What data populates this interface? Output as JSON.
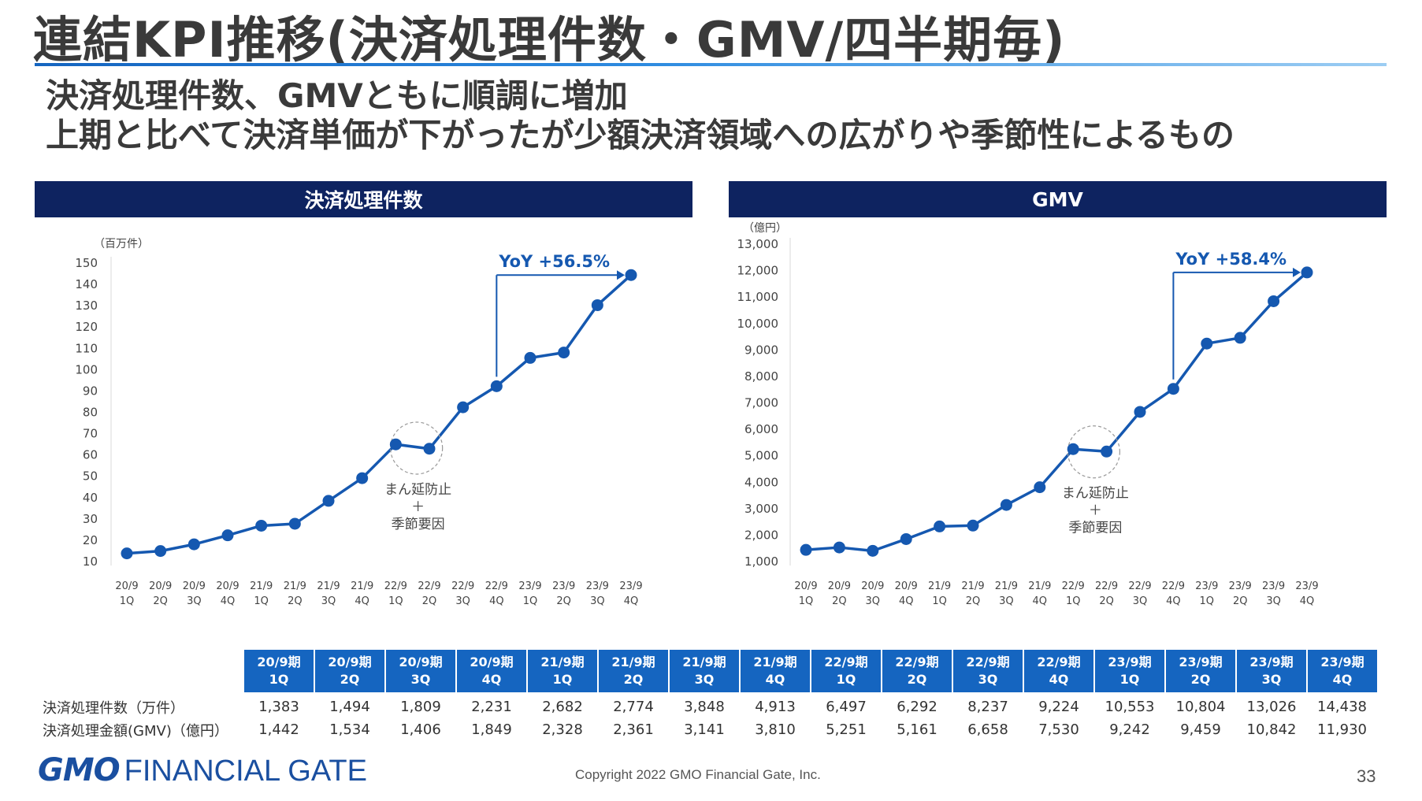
{
  "title": "連結KPI推移(決済処理件数・GMV/四半期毎)",
  "subtitle1": "決済処理件数、GMVともに順調に増加",
  "subtitle2": "上期と比べて決済単価が下がったが少額決済領域への広がりや季節性によるもの",
  "colors": {
    "header_bg": "#0e2360",
    "line": "#1558b0",
    "table_header": "#1565c0"
  },
  "chart_data": [
    {
      "type": "line",
      "title": "決済処理件数",
      "ylabel": "（百万件）",
      "ylim": [
        10,
        150
      ],
      "yticks": [
        "150",
        "140",
        "130",
        "120",
        "110",
        "100",
        "90",
        "80",
        "70",
        "60",
        "50",
        "40",
        "30",
        "20",
        "10"
      ],
      "categories": [
        "20/9 1Q",
        "20/9 2Q",
        "20/9 3Q",
        "20/9 4Q",
        "21/9 1Q",
        "21/9 2Q",
        "21/9 3Q",
        "21/9 4Q",
        "22/9 1Q",
        "22/9 2Q",
        "22/9 3Q",
        "22/9 4Q",
        "23/9 1Q",
        "23/9 2Q",
        "23/9 3Q",
        "23/9 4Q"
      ],
      "x_top": [
        "20/9",
        "20/9",
        "20/9",
        "20/9",
        "21/9",
        "21/9",
        "21/9",
        "21/9",
        "22/9",
        "22/9",
        "22/9",
        "22/9",
        "23/9",
        "23/9",
        "23/9",
        "23/9"
      ],
      "x_bottom": [
        "1Q",
        "2Q",
        "3Q",
        "4Q",
        "1Q",
        "2Q",
        "3Q",
        "4Q",
        "1Q",
        "2Q",
        "3Q",
        "4Q",
        "1Q",
        "2Q",
        "3Q",
        "4Q"
      ],
      "values": [
        13.83,
        14.94,
        18.09,
        22.31,
        26.82,
        27.74,
        38.48,
        49.13,
        64.97,
        62.92,
        82.37,
        92.24,
        105.53,
        108.04,
        130.26,
        144.38
      ],
      "annotation_yoy": "YoY +56.5%",
      "note_lines": [
        "まん延防止",
        "＋",
        "季節要因"
      ],
      "grid": false
    },
    {
      "type": "line",
      "title": "GMV",
      "ylabel": "（億円）",
      "ylim": [
        1000,
        13000
      ],
      "yticks": [
        "13,000",
        "12,000",
        "11,000",
        "10,000",
        "9,000",
        "8,000",
        "7,000",
        "6,000",
        "5,000",
        "4,000",
        "3,000",
        "2,000",
        "1,000"
      ],
      "categories": [
        "20/9 1Q",
        "20/9 2Q",
        "20/9 3Q",
        "20/9 4Q",
        "21/9 1Q",
        "21/9 2Q",
        "21/9 3Q",
        "21/9 4Q",
        "22/9 1Q",
        "22/9 2Q",
        "22/9 3Q",
        "22/9 4Q",
        "23/9 1Q",
        "23/9 2Q",
        "23/9 3Q",
        "23/9 4Q"
      ],
      "x_top": [
        "20/9",
        "20/9",
        "20/9",
        "20/9",
        "21/9",
        "21/9",
        "21/9",
        "21/9",
        "22/9",
        "22/9",
        "22/9",
        "22/9",
        "23/9",
        "23/9",
        "23/9",
        "23/9"
      ],
      "x_bottom": [
        "1Q",
        "2Q",
        "3Q",
        "4Q",
        "1Q",
        "2Q",
        "3Q",
        "4Q",
        "1Q",
        "2Q",
        "3Q",
        "4Q",
        "1Q",
        "2Q",
        "3Q",
        "4Q"
      ],
      "values": [
        1442,
        1534,
        1406,
        1849,
        2328,
        2361,
        3141,
        3810,
        5251,
        5161,
        6658,
        7530,
        9242,
        9459,
        10842,
        11930
      ],
      "annotation_yoy": "YoY +58.4%",
      "note_lines": [
        "まん延防止",
        "＋",
        "季節要因"
      ],
      "grid": false
    }
  ],
  "table": {
    "headers": [
      [
        "20/9期",
        "1Q"
      ],
      [
        "20/9期",
        "2Q"
      ],
      [
        "20/9期",
        "3Q"
      ],
      [
        "20/9期",
        "4Q"
      ],
      [
        "21/9期",
        "1Q"
      ],
      [
        "21/9期",
        "2Q"
      ],
      [
        "21/9期",
        "3Q"
      ],
      [
        "21/9期",
        "4Q"
      ],
      [
        "22/9期",
        "1Q"
      ],
      [
        "22/9期",
        "2Q"
      ],
      [
        "22/9期",
        "3Q"
      ],
      [
        "22/9期",
        "4Q"
      ],
      [
        "23/9期",
        "1Q"
      ],
      [
        "23/9期",
        "2Q"
      ],
      [
        "23/9期",
        "3Q"
      ],
      [
        "23/9期",
        "4Q"
      ]
    ],
    "rows": [
      {
        "label": "決済処理件数（万件）",
        "values": [
          "1,383",
          "1,494",
          "1,809",
          "2,231",
          "2,682",
          "2,774",
          "3,848",
          "4,913",
          "6,497",
          "6,292",
          "8,237",
          "9,224",
          "10,553",
          "10,804",
          "13,026",
          "14,438"
        ]
      },
      {
        "label": "決済処理金額(GMV)（億円）",
        "values": [
          "1,442",
          "1,534",
          "1,406",
          "1,849",
          "2,328",
          "2,361",
          "3,141",
          "3,810",
          "5,251",
          "5,161",
          "6,658",
          "7,530",
          "9,242",
          "9,459",
          "10,842",
          "11,930"
        ]
      }
    ]
  },
  "footer": {
    "logo_gmo": "GMO",
    "logo_text": "FINANCIAL GATE",
    "copyright": "Copyright 2022 GMO Financial Gate, Inc.",
    "page": "33"
  }
}
